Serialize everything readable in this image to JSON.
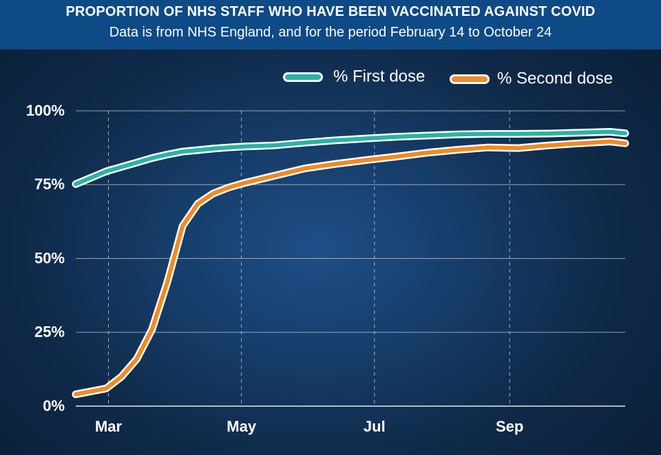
{
  "header": {
    "title": "PROPORTION OF NHS STAFF WHO HAVE BEEN VACCINATED AGAINST COVID",
    "subtitle": "Data is from NHS England, and for the period February 14 to October 24"
  },
  "colors": {
    "header_bg": "#0e4a86",
    "first_dose": "#2ab3a3",
    "second_dose": "#f28a22",
    "line_outline": "#ffffff",
    "grid": "#ffffff"
  },
  "chart_data": {
    "type": "line",
    "title": "PROPORTION OF NHS STAFF WHO HAVE BEEN VACCINATED AGAINST COVID",
    "subtitle": "Data is from NHS England, and for the period February 14 to October 24",
    "xlabel": "",
    "ylabel": "",
    "x_tick_labels": [
      "Mar",
      "May",
      "Jul",
      "Sep"
    ],
    "y_tick_labels": [
      "0%",
      "25%",
      "50%",
      "75%",
      "100%"
    ],
    "y_ticks": [
      0,
      25,
      50,
      75,
      100
    ],
    "ylim": [
      0,
      100
    ],
    "grid": "horizontal solid, vertical dashed",
    "legend": "top-right",
    "x": [
      "2021-02-14",
      "2021-02-28",
      "2021-03-07",
      "2021-03-14",
      "2021-03-21",
      "2021-03-28",
      "2021-04-04",
      "2021-04-11",
      "2021-04-18",
      "2021-04-25",
      "2021-05-02",
      "2021-05-16",
      "2021-05-30",
      "2021-06-13",
      "2021-06-27",
      "2021-07-11",
      "2021-07-25",
      "2021-08-08",
      "2021-08-22",
      "2021-09-05",
      "2021-09-19",
      "2021-10-03",
      "2021-10-17",
      "2021-10-24"
    ],
    "series": [
      {
        "name": "% First dose",
        "color": "#2ab3a3",
        "values": [
          75.2,
          79.5,
          81.0,
          82.5,
          84.0,
          85.2,
          86.2,
          86.7,
          87.2,
          87.6,
          87.9,
          88.3,
          89.2,
          90.0,
          90.6,
          91.2,
          91.6,
          92.0,
          92.2,
          92.2,
          92.3,
          92.6,
          92.9,
          92.4
        ]
      },
      {
        "name": "% Second dose",
        "color": "#f28a22",
        "values": [
          4.0,
          6.0,
          10.0,
          16.0,
          26.0,
          42.0,
          61.0,
          68.5,
          72.0,
          74.0,
          75.5,
          78.0,
          80.5,
          82.0,
          83.3,
          84.5,
          85.8,
          86.8,
          87.6,
          87.4,
          88.3,
          89.0,
          89.6,
          89.0
        ]
      }
    ]
  }
}
